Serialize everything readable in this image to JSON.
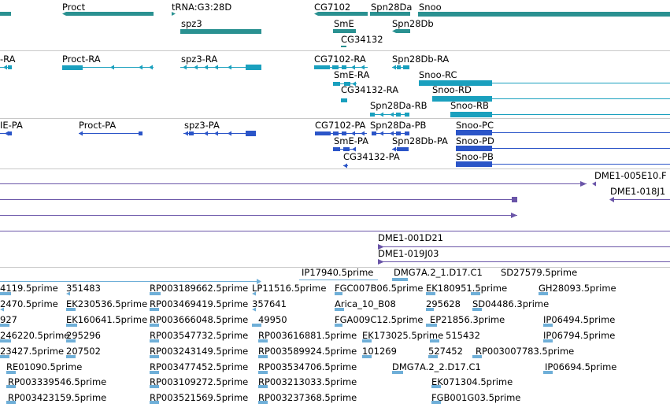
{
  "colors": {
    "gene": "#2a9191",
    "transcript": "#1aa0be",
    "protein": "#2b55c8",
    "cdna": "#6a55a8",
    "est": "#6fafd8",
    "separator": "#c8c8c8"
  },
  "tracks": {
    "genes": {
      "labels": [
        "Proct",
        "tRNA:G3:28D",
        "spz3",
        "CG7102",
        "Spn28Da",
        "Snoo",
        "SmE",
        "Spn28Db",
        "CG34132"
      ]
    },
    "transcripts": {
      "labels": [
        "-RA",
        "Proct-RA",
        "spz3-RA",
        "CG7102-RA",
        "Spn28Db-RA",
        "SmE-RA",
        "Snoo-RC",
        "CG34132-RA",
        "Snoo-RD",
        "Spn28Da-RB",
        "Snoo-RB"
      ]
    },
    "proteins": {
      "labels": [
        "IE-PA",
        "Proct-PA",
        "spz3-PA",
        "CG7102-PA",
        "Spn28Da-PB",
        "Snoo-PC",
        "SmE-PA",
        "Spn28Db-PA",
        "Snoo-PD",
        "CG34132-PA",
        "Snoo-PB"
      ]
    },
    "cdna": {
      "labels": [
        "DME1-005E10.F",
        "DME1-018J1",
        "DME1-001D21",
        "DME1-019J03"
      ]
    },
    "ests": {
      "labels": [
        "IP17940.5prime",
        "DMG7A.2_1.D17.C1",
        "SD27579.5prime",
        "4119.5prime",
        "351483",
        "RP003189662.5prime",
        "LP11516.5prime",
        "FGC007B06.5prime",
        "EK180951.5prime",
        "GH28093.5prime",
        "2470.5prime",
        "EK230536.5prime",
        "RP003469419.5prime",
        "357641",
        "Arica_10_B08",
        "295628",
        "SD04486.3prime",
        "927",
        "EK160641.5prime",
        "RP003666048.5prime",
        "49950",
        "FGA009C12.5prime",
        "EP21856.3prime",
        "IP06494.5prime",
        "246220.5prime",
        "295296",
        "RP003547732.5prime",
        "RP003616881.5prime",
        "EK173025.5prime",
        "515432",
        "IP06794.5prime",
        "23427.5prime",
        "207502",
        "RP003243149.5prime",
        "RP003589924.5prime",
        "101269",
        "527452",
        "RP003007783.5prime",
        "RE01090.5prime",
        "RP003477452.5prime",
        "RP003534706.5prime",
        "DMG7A.2_2.D17.C1",
        "IP06694.5prime",
        "RP003339546.5prime",
        "RP003109272.5prime",
        "RP003213033.5prime",
        "EK071304.5prime",
        "RP003423159.5prime",
        "RP003521569.5prime",
        "RP003237368.5prime",
        "FGB001G03.5prime"
      ]
    }
  }
}
